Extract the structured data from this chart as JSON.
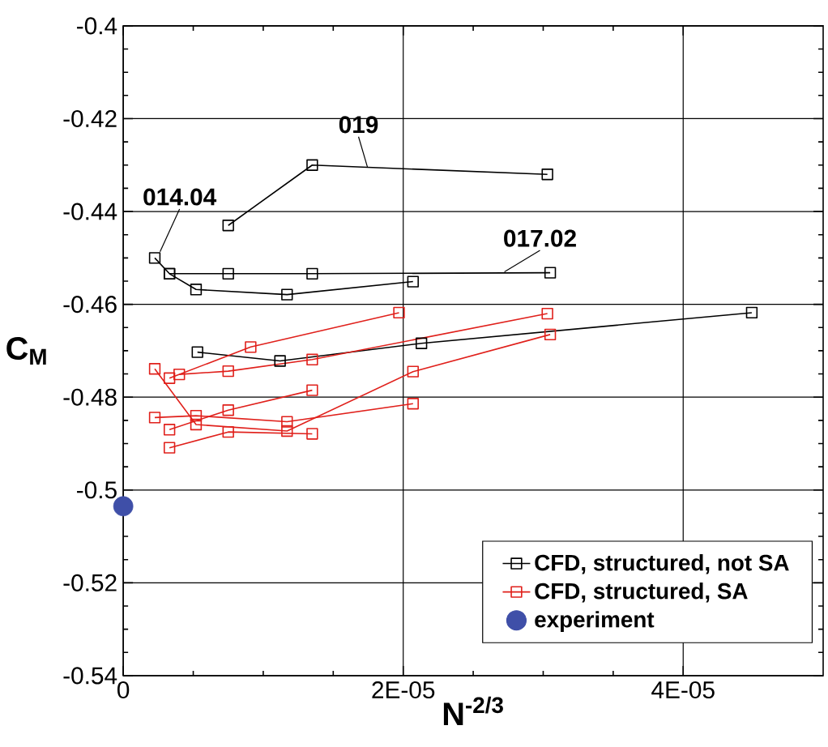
{
  "chart_data": {
    "type": "line",
    "xlabel": "N$^{-2/3}$",
    "ylabel": "C$_{M}$",
    "xlim": [
      0,
      5e-05
    ],
    "ylim": [
      -0.54,
      -0.4
    ],
    "xticks": [
      0,
      {
        "value": 2e-05,
        "label": "2E-05"
      },
      {
        "value": 4e-05,
        "label": "4E-05"
      }
    ],
    "yticks": [
      -0.54,
      -0.52,
      -0.5,
      -0.48,
      -0.46,
      -0.44,
      -0.42,
      -0.4
    ],
    "grid": true,
    "legend": "bottom right",
    "series": [
      {
        "name": "CFD, structured, not SA",
        "color": "#000000",
        "marker": "square",
        "x": [
          7.5e-06,
          1.35e-05,
          3.03e-05
        ],
        "values": [
          -0.443,
          -0.43,
          -0.432
        ]
      },
      {
        "color": "#000000",
        "marker": "square",
        "x": [
          2.25e-06,
          3.3e-06,
          5.2e-06,
          1.17e-05,
          2.07e-05
        ],
        "values": [
          -0.45,
          -0.4534,
          -0.4568,
          -0.4579,
          -0.4551
        ]
      },
      {
        "color": "#000000",
        "marker": "square",
        "x": [
          3.3e-06,
          7.5e-06,
          1.35e-05,
          3.05e-05
        ],
        "values": [
          -0.4534,
          -0.4534,
          -0.4534,
          -0.4532
        ]
      },
      {
        "color": "#000000",
        "marker": "square",
        "x": [
          5.3e-06,
          1.12e-05,
          2.13e-05,
          4.49e-05
        ],
        "values": [
          -0.4703,
          -0.4722,
          -0.4684,
          -0.4618
        ]
      },
      {
        "name": "CFD, structured, SA",
        "color": "#e0201b",
        "marker": "square",
        "x": [
          4e-06,
          7.5e-06,
          1.35e-05,
          3.03e-05
        ],
        "values": [
          -0.4751,
          -0.4744,
          -0.4719,
          -0.462
        ]
      },
      {
        "color": "#e0201b",
        "marker": "square",
        "x": [
          3.3e-06,
          9.1e-06,
          1.97e-05
        ],
        "values": [
          -0.4759,
          -0.4692,
          -0.4618
        ]
      },
      {
        "color": "#e0201b",
        "marker": "square",
        "x": [
          2.25e-06,
          5.2e-06,
          1.17e-05,
          2.07e-05,
          3.05e-05
        ],
        "values": [
          -0.4739,
          -0.4859,
          -0.4873,
          -0.4745,
          -0.4665
        ]
      },
      {
        "color": "#e0201b",
        "marker": "square",
        "x": [
          2.25e-06,
          5.2e-06,
          1.17e-05,
          2.07e-05
        ],
        "values": [
          -0.4844,
          -0.484,
          -0.4853,
          -0.4814
        ]
      },
      {
        "color": "#e0201b",
        "marker": "square",
        "x": [
          3.3e-06,
          7.5e-06,
          1.35e-05
        ],
        "values": [
          -0.487,
          -0.4828,
          -0.4785
        ]
      },
      {
        "color": "#e0201b",
        "marker": "square",
        "x": [
          3.3e-06,
          7.5e-06,
          1.35e-05
        ],
        "values": [
          -0.4909,
          -0.4875,
          -0.4879
        ]
      },
      {
        "name": "experiment",
        "type": "scatter",
        "color": "#3f4fa8",
        "marker": "circle",
        "x": [
          0
        ],
        "values": [
          -0.5035
        ]
      }
    ],
    "annotations": [
      {
        "text": "019",
        "x": 1.75e-05,
        "y": -0.431
      },
      {
        "text": "014.04",
        "x": 2.5e-06,
        "y": -0.4495
      },
      {
        "text": "017.02",
        "x": 2.7e-05,
        "y": -0.4534
      }
    ]
  }
}
